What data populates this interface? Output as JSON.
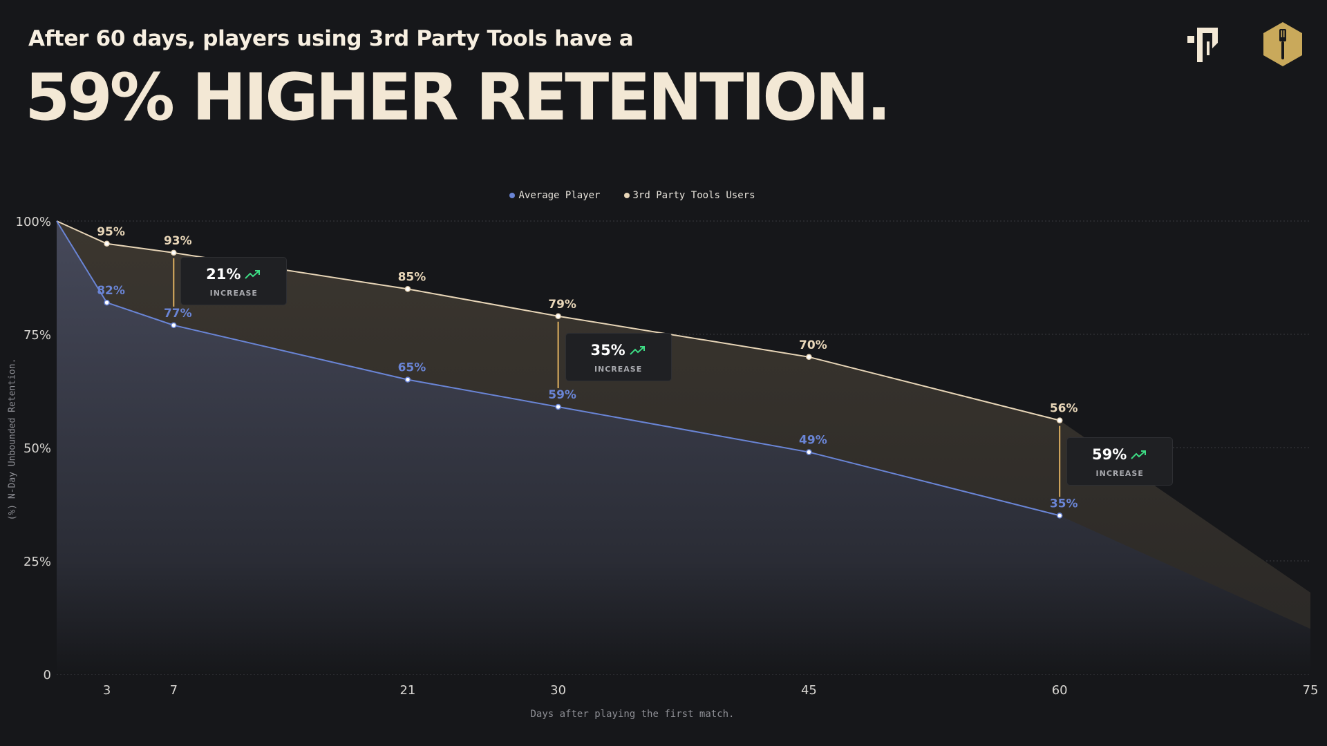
{
  "header": {
    "subtitle": "After 60 days, players using 3rd Party Tools have a",
    "headline": "59% HIGHER RETENTION."
  },
  "icons": [
    "brand-logo-icon",
    "spatula-badge-icon",
    "trend-up-icon"
  ],
  "colors": {
    "background": "#16171a",
    "average": "#6a85d6",
    "tools": "#e8d6b8",
    "increase_arrow": "#3ddc84"
  },
  "chart_data": {
    "type": "area",
    "xlabel": "Days after playing the first match.",
    "ylabel": "(%) N-Day Unbounded Retention.",
    "x_ticks": [
      3,
      7,
      21,
      30,
      45,
      60,
      75
    ],
    "y_ticks": [
      0,
      25,
      50,
      75,
      100
    ],
    "y_tick_labels": [
      "0",
      "25%",
      "50%",
      "75%",
      "100%"
    ],
    "xlim": [
      0,
      75
    ],
    "ylim": [
      0,
      100
    ],
    "grid": true,
    "legend_position": "top-center",
    "series": [
      {
        "name": "Average Player",
        "color": "#6a85d6",
        "x": [
          0,
          3,
          7,
          21,
          30,
          45,
          60,
          75
        ],
        "y": [
          100,
          82,
          77,
          65,
          59,
          49,
          35,
          10
        ],
        "labels": [
          "",
          "82%",
          "77%",
          "65%",
          "59%",
          "49%",
          "35%",
          ""
        ]
      },
      {
        "name": "3rd Party Tools Users",
        "color": "#e8d6b8",
        "x": [
          0,
          3,
          7,
          21,
          30,
          45,
          60,
          75
        ],
        "y": [
          100,
          95,
          93,
          85,
          79,
          70,
          56,
          18
        ],
        "labels": [
          "",
          "95%",
          "93%",
          "85%",
          "79%",
          "70%",
          "56%",
          ""
        ]
      }
    ],
    "callouts": [
      {
        "day": 7,
        "value": "21%",
        "label": "INCREASE"
      },
      {
        "day": 30,
        "value": "35%",
        "label": "INCREASE"
      },
      {
        "day": 60,
        "value": "59%",
        "label": "INCREASE"
      }
    ]
  }
}
